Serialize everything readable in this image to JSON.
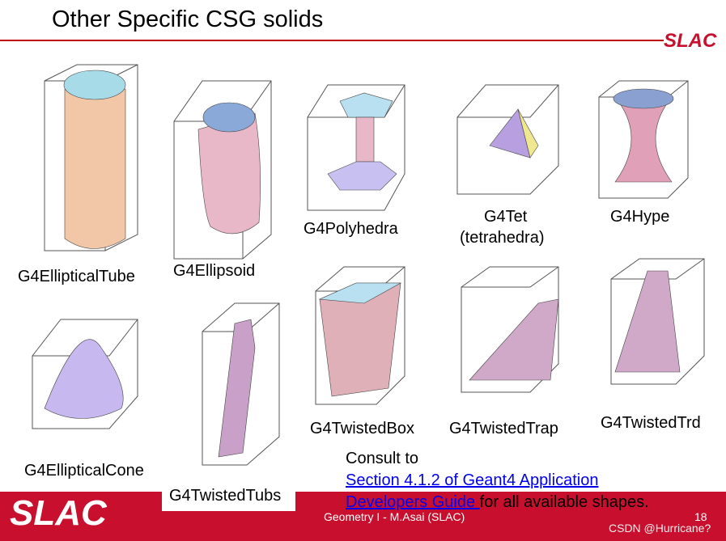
{
  "header": {
    "title": "Other Specific CSG solids",
    "logo": "SLAC"
  },
  "shapes": [
    "G4EllipticalTube",
    "G4Ellipsoid",
    "G4Polyhedra",
    "G4Tet",
    "(tetrahedra)",
    "G4Hype",
    "G4EllipticalCone",
    "G4TwistedTubs",
    "G4TwistedBox",
    "G4TwistedTrap",
    "G4TwistedTrd"
  ],
  "consult": {
    "intro": "Consult to",
    "link_line1": "Section 4.1.2 of Geant4 Application",
    "link_line2": "Developers Guide ",
    "rest": "for all available shapes."
  },
  "footer": {
    "logo": "SLAC",
    "text": "Geometry I - M.Asai (SLAC)",
    "page": "18",
    "watermark": "CSDN @Hurricane?"
  }
}
